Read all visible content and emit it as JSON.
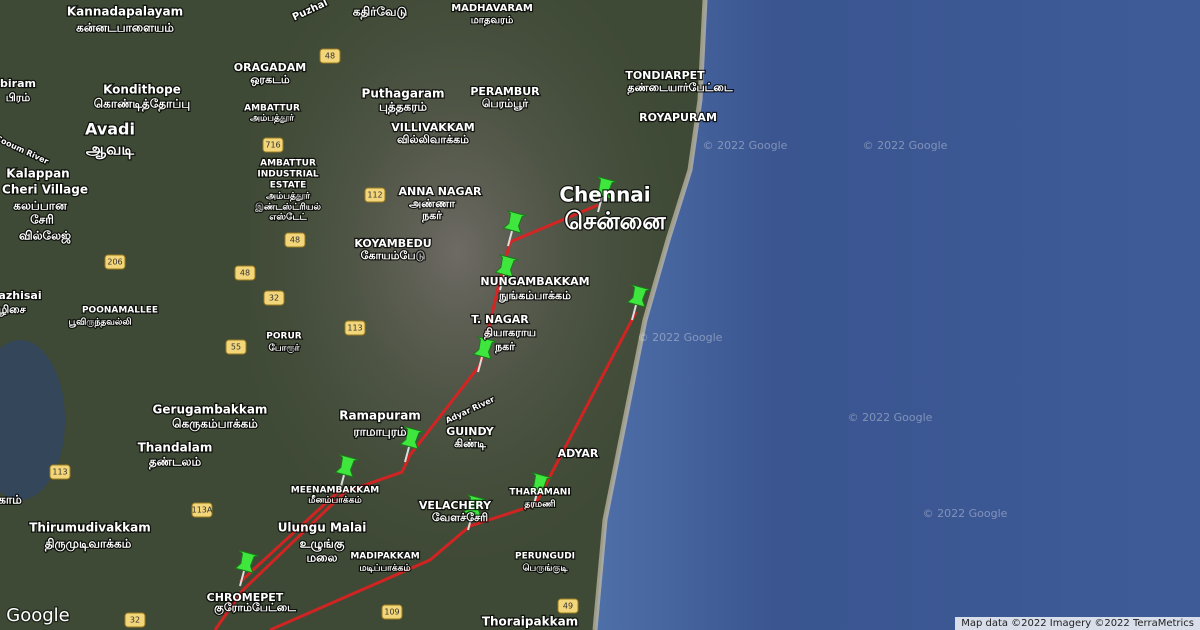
{
  "map": {
    "labels": [
      "Kannadapalayam",
      "கன்னடபாளையம்",
      "Puzhal",
      "கதிர்வேடு",
      "MADHAVARAM",
      "மாதவரம்",
      "ORAGADAM",
      "ஒரகடம்",
      "biram",
      "பிரம்",
      "Kondithope",
      "கொண்டித்தோப்பு",
      "Puthagaram",
      "புத்தகரம்",
      "PERAMBUR",
      "பெரம்பூர்",
      "TONDIARPET",
      "தண்டையார்பேட்டை",
      "ROYAPURAM",
      "AMBATTUR",
      "அம்பத்தூர்",
      "Avadi",
      "ஆவடி",
      "VILLIVAKKAM",
      "வில்லிவாக்கம்",
      "Cooum River",
      "AMBATTUR",
      "INDUSTRIAL",
      "ESTATE",
      "அம்பத்தூர்",
      "இண்டஸ்ட்ரியல்",
      "எஸ்டேட்",
      "Kalappan",
      "Cheri Village",
      "கலப்பான",
      "சேரி",
      "வில்லேஜ்",
      "ANNA NAGAR",
      "அண்ணா",
      "நகர்",
      "Chennai",
      "சென்னை",
      "KOYAMBEDU",
      "கோயம்பேடு",
      "NUNGAMBAKKAM",
      "நுங்கம்பாக்கம்",
      "azhisai",
      "ழிசை",
      "POONAMALLEE",
      "பூவிருந்தவல்லி",
      "PORUR",
      "போரூர்",
      "T. NAGAR",
      "தியாகராய",
      "நகர்",
      "Gerugambakkam",
      "கெருகம்பாக்கம்",
      "Ramapuram",
      "ராமாபுரம்",
      "Adyar River",
      "GUINDY",
      "கிண்டி",
      "ADYAR",
      "Thandalam",
      "தண்டலம்",
      "MEENAMBAKKAM",
      "மீனம்பாக்கம்",
      "VELACHERY",
      "வேளச்சேரி",
      "THARAMANI",
      "தரமணி",
      "காம்",
      "Thirumudivakkam",
      "திருமுடிவாக்கம்",
      "Ulungu Malai",
      "உழுங்கு",
      "மலை",
      "MADIPAKKAM",
      "மடிப்பாக்கம்",
      "PERUNGUDI",
      "பெருங்குடி",
      "CHROMEPET",
      "குரோம்பேட்டை",
      "Thoraipakkam"
    ],
    "road_shields": [
      "48",
      "716",
      "112",
      "48",
      "206",
      "48",
      "32",
      "113",
      "55",
      "113",
      "113A",
      "32",
      "109",
      "49"
    ],
    "watermarks": [
      "© 2022 Google",
      "© 2022 Google",
      "© 2022 Google",
      "© 2022 Google",
      "© 2022 Google"
    ],
    "logo": "Google",
    "attribution": "Map data ©2022 Imagery ©2022 TerraMetrics"
  }
}
